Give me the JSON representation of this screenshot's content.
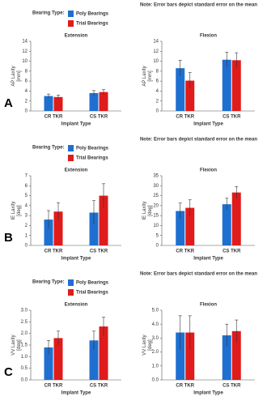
{
  "chart_data": [
    {
      "type": "bar",
      "label": "A",
      "note": "Note: Error bars depict standard error on the mean",
      "legend_title": "Bearing Type:",
      "series": [
        {
          "name": "Poly Bearings",
          "color": "#1f6fd1"
        },
        {
          "name": "Trial Bearings",
          "color": "#e01b1b"
        }
      ],
      "panels": [
        {
          "title": "Extension",
          "ylabel": "AP Laxity\n[mm]",
          "xlabel": "Implant Type",
          "categories": [
            "CR TKR",
            "CS TKR"
          ],
          "ylim": [
            0,
            14
          ],
          "yticks": [
            0,
            2,
            4,
            6,
            8,
            10,
            12,
            14
          ],
          "values": [
            [
              3.0,
              3.6
            ],
            [
              2.8,
              3.8
            ]
          ],
          "errors": [
            [
              0.4,
              0.5
            ],
            [
              0.4,
              0.5
            ]
          ]
        },
        {
          "title": "Flexion",
          "ylabel": "AP Laxity\n[mm]",
          "xlabel": "Implant Type",
          "categories": [
            "CR TKR",
            "CS TKR"
          ],
          "ylim": [
            0,
            14
          ],
          "yticks": [
            0,
            2,
            4,
            6,
            8,
            10,
            12,
            14
          ],
          "values": [
            [
              8.6,
              10.3
            ],
            [
              6.1,
              10.2
            ]
          ],
          "errors": [
            [
              1.6,
              1.5
            ],
            [
              1.6,
              1.5
            ]
          ]
        }
      ]
    },
    {
      "type": "bar",
      "label": "B",
      "note": "Note: Error bars depict standard error on the mean",
      "legend_title": "Bearing Type:",
      "series": [
        {
          "name": "Poly Bearings",
          "color": "#1f6fd1"
        },
        {
          "name": "Trial Bearings",
          "color": "#e01b1b"
        }
      ],
      "panels": [
        {
          "title": "Extension",
          "ylabel": "IE Laxity\n[deg]",
          "xlabel": "Implant Type",
          "categories": [
            "CR TKR",
            "CS TKR"
          ],
          "ylim": [
            0,
            7
          ],
          "yticks": [
            0,
            1,
            2,
            3,
            4,
            5,
            6,
            7
          ],
          "values": [
            [
              2.6,
              3.3
            ],
            [
              3.4,
              5.0
            ]
          ],
          "errors": [
            [
              0.9,
              1.2
            ],
            [
              0.9,
              1.2
            ]
          ]
        },
        {
          "title": "Flexion",
          "ylabel": "IE Laxity\n[deg]",
          "xlabel": "Implant Type",
          "categories": [
            "CR TKR",
            "CS TKR"
          ],
          "ylim": [
            0,
            35
          ],
          "yticks": [
            0,
            5,
            10,
            15,
            20,
            25,
            30,
            35
          ],
          "values": [
            [
              17.3,
              20.7
            ],
            [
              18.9,
              26.6
            ]
          ],
          "errors": [
            [
              4,
              3
            ],
            [
              4,
              3
            ]
          ]
        }
      ]
    },
    {
      "type": "bar",
      "label": "C",
      "note": "Note: Error bars depict standard error on the mean",
      "legend_title": "Bearing Type:",
      "series": [
        {
          "name": "Poly Bearings",
          "color": "#1f6fd1"
        },
        {
          "name": "Trial Bearings",
          "color": "#e01b1b"
        }
      ],
      "panels": [
        {
          "title": "Extension",
          "ylabel": "VV Laxity\n[deg]",
          "xlabel": "Implant Type",
          "categories": [
            "CR TKR",
            "CS TKR"
          ],
          "ylim": [
            0,
            3
          ],
          "yticks": [
            {
              "value": 0,
              "label": "0.0"
            },
            {
              "value": 0.5,
              "label": "0.5"
            },
            {
              "value": 1,
              "label": "1.0"
            },
            {
              "value": 1.5,
              "label": "1.5"
            },
            {
              "value": 2,
              "label": "2.0"
            },
            {
              "value": 2.5,
              "label": "2.5"
            },
            {
              "value": 3,
              "label": "3.0"
            }
          ],
          "values": [
            [
              1.4,
              1.7
            ],
            [
              1.8,
              2.3
            ]
          ],
          "errors": [
            [
              0.3,
              0.4
            ],
            [
              0.3,
              0.4
            ]
          ]
        },
        {
          "title": "Flexion",
          "ylabel": "VV Laxity\n[deg]",
          "xlabel": "Implant Type",
          "categories": [
            "CR TKR",
            "CS TKR"
          ],
          "ylim": [
            0,
            5
          ],
          "yticks": [
            {
              "value": 0,
              "label": "0.0"
            },
            {
              "value": 1,
              "label": "1.0"
            },
            {
              "value": 2,
              "label": "2.0"
            },
            {
              "value": 3,
              "label": "3.0"
            },
            {
              "value": 4,
              "label": "4.0"
            },
            {
              "value": 5,
              "label": "5.0"
            }
          ],
          "values": [
            [
              3.4,
              3.2
            ],
            [
              3.4,
              3.5
            ]
          ],
          "errors": [
            [
              1.2,
              0.8
            ],
            [
              1.2,
              0.8
            ]
          ]
        }
      ]
    }
  ]
}
